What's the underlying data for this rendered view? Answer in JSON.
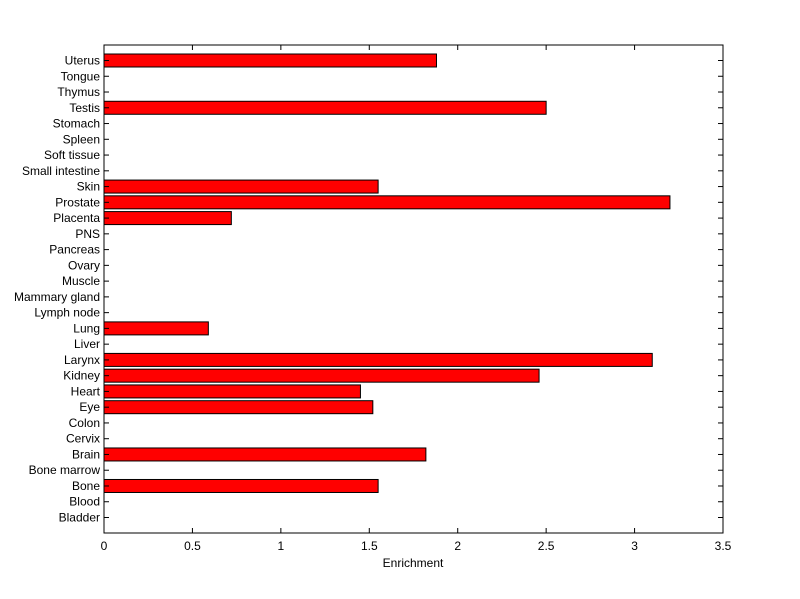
{
  "chart_data": {
    "type": "bar",
    "orientation": "horizontal",
    "title": "",
    "xlabel": "Enrichment",
    "ylabel": "",
    "xlim": [
      0,
      3.5
    ],
    "xticks": [
      "0",
      "0.5",
      "1",
      "1.5",
      "2",
      "2.5",
      "3",
      "3.5"
    ],
    "grid": false,
    "bar_color": "#ff0000",
    "bar_edge_color": "#000000",
    "categories": [
      "Bladder",
      "Blood",
      "Bone",
      "Bone marrow",
      "Brain",
      "Cervix",
      "Colon",
      "Eye",
      "Heart",
      "Kidney",
      "Larynx",
      "Liver",
      "Lung",
      "Lymph node",
      "Mammary gland",
      "Muscle",
      "Ovary",
      "Pancreas",
      "PNS",
      "Placenta",
      "Prostate",
      "Skin",
      "Small intestine",
      "Soft tissue",
      "Spleen",
      "Stomach",
      "Testis",
      "Thymus",
      "Tongue",
      "Uterus"
    ],
    "values": [
      0,
      0,
      1.55,
      0,
      1.82,
      0,
      0,
      1.52,
      1.45,
      2.46,
      3.1,
      0,
      0.59,
      0,
      0,
      0,
      0,
      0,
      0,
      0.72,
      3.2,
      1.55,
      0,
      0,
      0,
      0,
      2.5,
      0,
      0,
      1.88
    ]
  }
}
